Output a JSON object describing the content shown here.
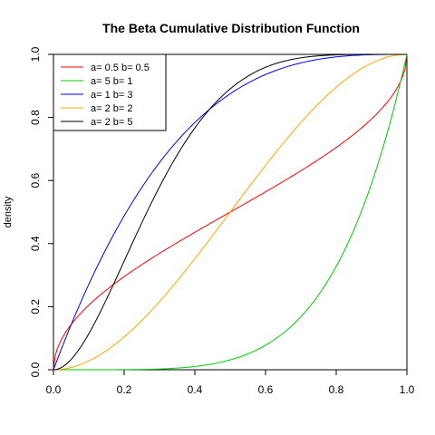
{
  "chart_data": {
    "type": "line",
    "title": "The Beta Cumulative Distribution Function",
    "xlabel": "",
    "ylabel": "density",
    "xlim": [
      0,
      1
    ],
    "ylim": [
      0,
      1
    ],
    "x_ticks": [
      "0.0",
      "0.2",
      "0.4",
      "0.6",
      "0.8",
      "1.0"
    ],
    "y_ticks": [
      "0.0",
      "0.2",
      "0.4",
      "0.6",
      "0.8",
      "1.0"
    ],
    "grid": false,
    "legend_position": "top-left",
    "series": [
      {
        "name": "a= 0.5  b= 0.5",
        "color": "#ff0000",
        "a": 0.5,
        "b": 0.5
      },
      {
        "name": "a= 5  b= 1",
        "color": "#00cc00",
        "a": 5,
        "b": 1
      },
      {
        "name": "a= 1  b= 3",
        "color": "#0000ff",
        "a": 1,
        "b": 3
      },
      {
        "name": "a= 2  b= 2",
        "color": "#ffa500",
        "a": 2,
        "b": 2
      },
      {
        "name": "a= 2  b= 5",
        "color": "#000000",
        "a": 2,
        "b": 5
      }
    ]
  }
}
